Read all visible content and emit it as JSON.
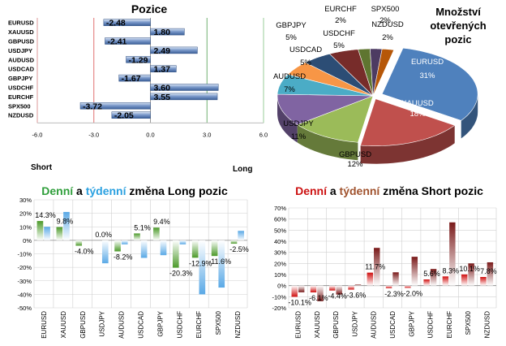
{
  "chart_data": [
    {
      "type": "bar",
      "orientation": "horizontal",
      "title": "Pozice",
      "categories": [
        "EURUSD",
        "XAUUSD",
        "GBPUSD",
        "USDJPY",
        "AUDUSD",
        "USDCAD",
        "GBPJPY",
        "USDCHF",
        "EURCHF",
        "SPX500",
        "NZDUSD"
      ],
      "values": [
        -2.48,
        1.8,
        -2.41,
        2.49,
        -1.29,
        1.37,
        -1.67,
        3.6,
        3.55,
        -3.72,
        -2.05
      ],
      "value_labels": [
        "-2.48",
        "1.80",
        "-2.41",
        "2.49",
        "-1.29",
        "1.37",
        "-1.67",
        "3.60",
        "3.55",
        "-3.72",
        "-2.05"
      ],
      "xlim": [
        -6,
        6
      ],
      "xticks": [
        "-6.0",
        "-3.0",
        "0.0",
        "3.0",
        "6.0"
      ],
      "xlabel_left": "Short",
      "xlabel_right": "Long",
      "colors": {
        "bar": "#5a7fb8",
        "short_line": "#e07070",
        "long_line": "#70b070"
      }
    },
    {
      "type": "pie",
      "title_lines": [
        "Množství",
        "otevřených",
        "pozic"
      ],
      "slices": [
        {
          "name": "EURUSD",
          "value": 31,
          "label": "31%",
          "color": "#4f81bd"
        },
        {
          "name": "XAUUSD",
          "value": 18,
          "label": "18%",
          "color": "#c0504d"
        },
        {
          "name": "GBPUSD",
          "value": 12,
          "label": "12%",
          "color": "#9bbb59"
        },
        {
          "name": "USDJPY",
          "value": 11,
          "label": "11%",
          "color": "#8064a2"
        },
        {
          "name": "AUDUSD",
          "value": 7,
          "label": "7%",
          "color": "#4bacc6"
        },
        {
          "name": "USDCAD",
          "value": 5,
          "label": "5%",
          "color": "#f79646"
        },
        {
          "name": "GBPJPY",
          "value": 5,
          "label": "5%",
          "color": "#2c4d75"
        },
        {
          "name": "USDCHF",
          "value": 5,
          "label": "5%",
          "color": "#772c2a"
        },
        {
          "name": "EURCHF",
          "value": 2,
          "label": "2%",
          "color": "#5f7530"
        },
        {
          "name": "SPX500",
          "value": 2,
          "label": "2%",
          "color": "#4d3b62"
        },
        {
          "name": "NZDUSD",
          "value": 2,
          "label": "2%",
          "color": "#b65708"
        }
      ]
    },
    {
      "type": "bar",
      "title_parts": [
        {
          "text": "Denní",
          "color": "#2e9e3a"
        },
        {
          "text": " a ",
          "color": "#000000"
        },
        {
          "text": "týdenní",
          "color": "#2aa0e0"
        },
        {
          "text": " změna Long pozic",
          "color": "#000000"
        }
      ],
      "categories": [
        "EURUSD",
        "XAUUSD",
        "GBPUSD",
        "USDJPY",
        "AUDUSD",
        "USDCAD",
        "GBPJPY",
        "USDCHF",
        "EURCHF",
        "SPX500",
        "NZDUSD"
      ],
      "series": [
        {
          "values": [
            14.3,
            9.8,
            -4.0,
            0.0,
            -8.2,
            5.1,
            9.4,
            -20.3,
            -12.9,
            -11.6,
            -2.5
          ],
          "color": "#4c9a2a"
        },
        {
          "values": [
            10.0,
            21.0,
            0.0,
            -17.0,
            -3.0,
            -13.0,
            -11.0,
            -3.0,
            -40.0,
            -35.0,
            7.0
          ],
          "color": "#5aa9e6"
        }
      ],
      "data_labels": [
        "14.3%",
        "9.8%",
        "-4.0%",
        "0.0%",
        "-8.2%",
        "5.1%",
        "9.4%",
        "-20.3%",
        "-12.9%",
        "-11.6%",
        "-2.5%"
      ],
      "ylim": [
        -50,
        30
      ],
      "yticks": [
        "30%",
        "20%",
        "10%",
        "0%",
        "-10%",
        "-20%",
        "-30%",
        "-40%",
        "-50%"
      ]
    },
    {
      "type": "bar",
      "title_parts": [
        {
          "text": "Denní",
          "color": "#cc1111"
        },
        {
          "text": " a ",
          "color": "#000000"
        },
        {
          "text": "týdenní",
          "color": "#a0522d"
        },
        {
          "text": " změna Short pozic",
          "color": "#000000"
        }
      ],
      "categories": [
        "EURUSD",
        "XAUUSD",
        "GBPUSD",
        "USDJPY",
        "AUDUSD",
        "USDCAD",
        "GBPJPY",
        "USDCHF",
        "EURCHF",
        "SPX500",
        "NZDUSD"
      ],
      "series": [
        {
          "values": [
            -10.1,
            -6.1,
            -4.4,
            -3.6,
            11.7,
            -2.3,
            -2.0,
            5.6,
            8.3,
            10.1,
            7.8
          ],
          "color": "#d01010"
        },
        {
          "values": [
            -6.0,
            -14.0,
            -8.0,
            1.0,
            34.0,
            12.0,
            26.0,
            15.0,
            57.0,
            20.0,
            21.0
          ],
          "color": "#7a1a1a"
        }
      ],
      "data_labels": [
        "-10.1%",
        "-6.1%",
        "-4.4%",
        "-3.6%",
        "11.7%",
        "-2.3%",
        "-2.0%",
        "5.6%",
        "8.3%",
        "10.1%",
        "7.8%"
      ],
      "ylim": [
        -20,
        70
      ],
      "yticks": [
        "70%",
        "60%",
        "50%",
        "40%",
        "30%",
        "20%",
        "10%",
        "0%",
        "-10%",
        "-20%"
      ]
    }
  ]
}
